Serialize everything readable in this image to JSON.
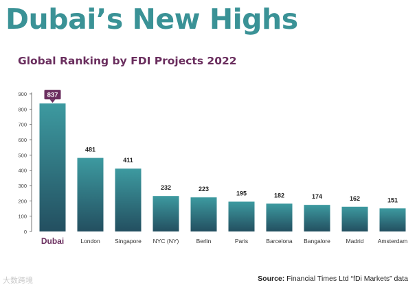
{
  "header": {
    "title": "Dubai’s New Highs"
  },
  "chart_data": {
    "type": "bar",
    "title": "Global Ranking by FDI Projects 2022",
    "xlabel": "",
    "ylabel": "",
    "ylim": [
      0,
      900
    ],
    "yticks": [
      0,
      100,
      200,
      300,
      400,
      500,
      600,
      700,
      800,
      900
    ],
    "categories": [
      "Dubai",
      "London",
      "Singapore",
      "NYC (NY)",
      "Berlin",
      "Paris",
      "Barcelona",
      "Bangalore",
      "Madrid",
      "Amsterdam"
    ],
    "values": [
      837,
      481,
      411,
      232,
      223,
      195,
      182,
      174,
      162,
      151
    ],
    "highlight": "Dubai",
    "grid": false
  },
  "footer": {
    "source_label": "Source:",
    "source_text": " Financial Times Ltd  “fDi Markets” data",
    "watermark": "大数跨境"
  },
  "colors": {
    "title": "#3a9296",
    "accent": "#6a2e5e",
    "bar_top": "#3d9aa0",
    "bar_bottom": "#234f60"
  }
}
